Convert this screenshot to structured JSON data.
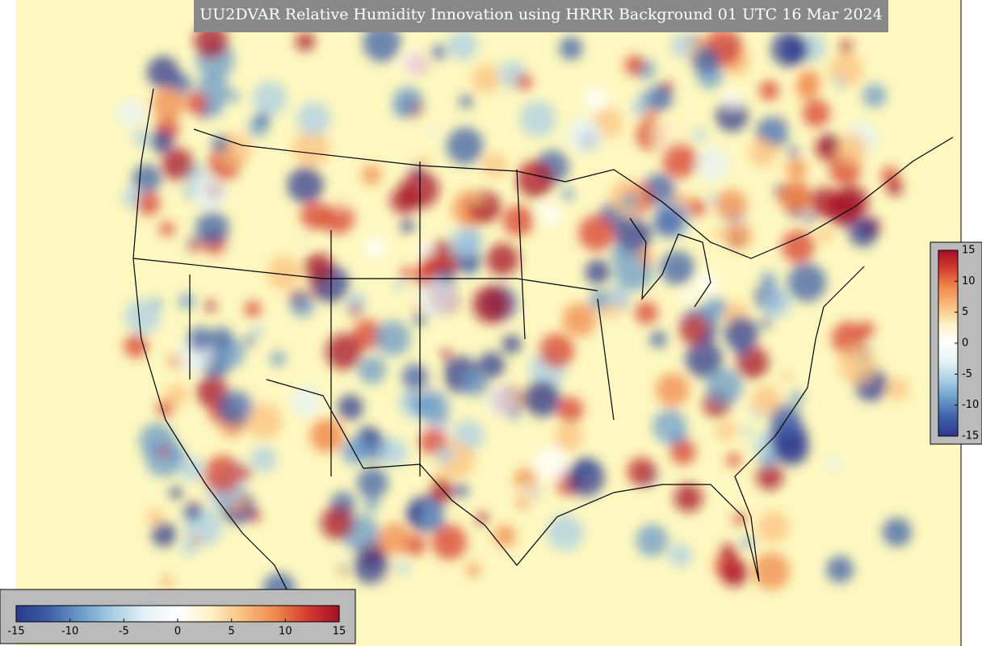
{
  "title": "UU2DVAR Relative Humidity Innovation using HRRR Background 01 UTC 16 Mar 2024",
  "colorbar": {
    "range": [
      -15,
      15
    ],
    "ticks": [
      -15,
      -10,
      -5,
      0,
      5,
      10,
      15
    ],
    "colors": [
      "#2b3a8f",
      "#3c5fa8",
      "#6a9bc9",
      "#a9cfe5",
      "#e4f2f7",
      "#ffffff",
      "#fdf2c4",
      "#fbc07e",
      "#f08a4e",
      "#d73d2f",
      "#a50f26"
    ]
  }
}
